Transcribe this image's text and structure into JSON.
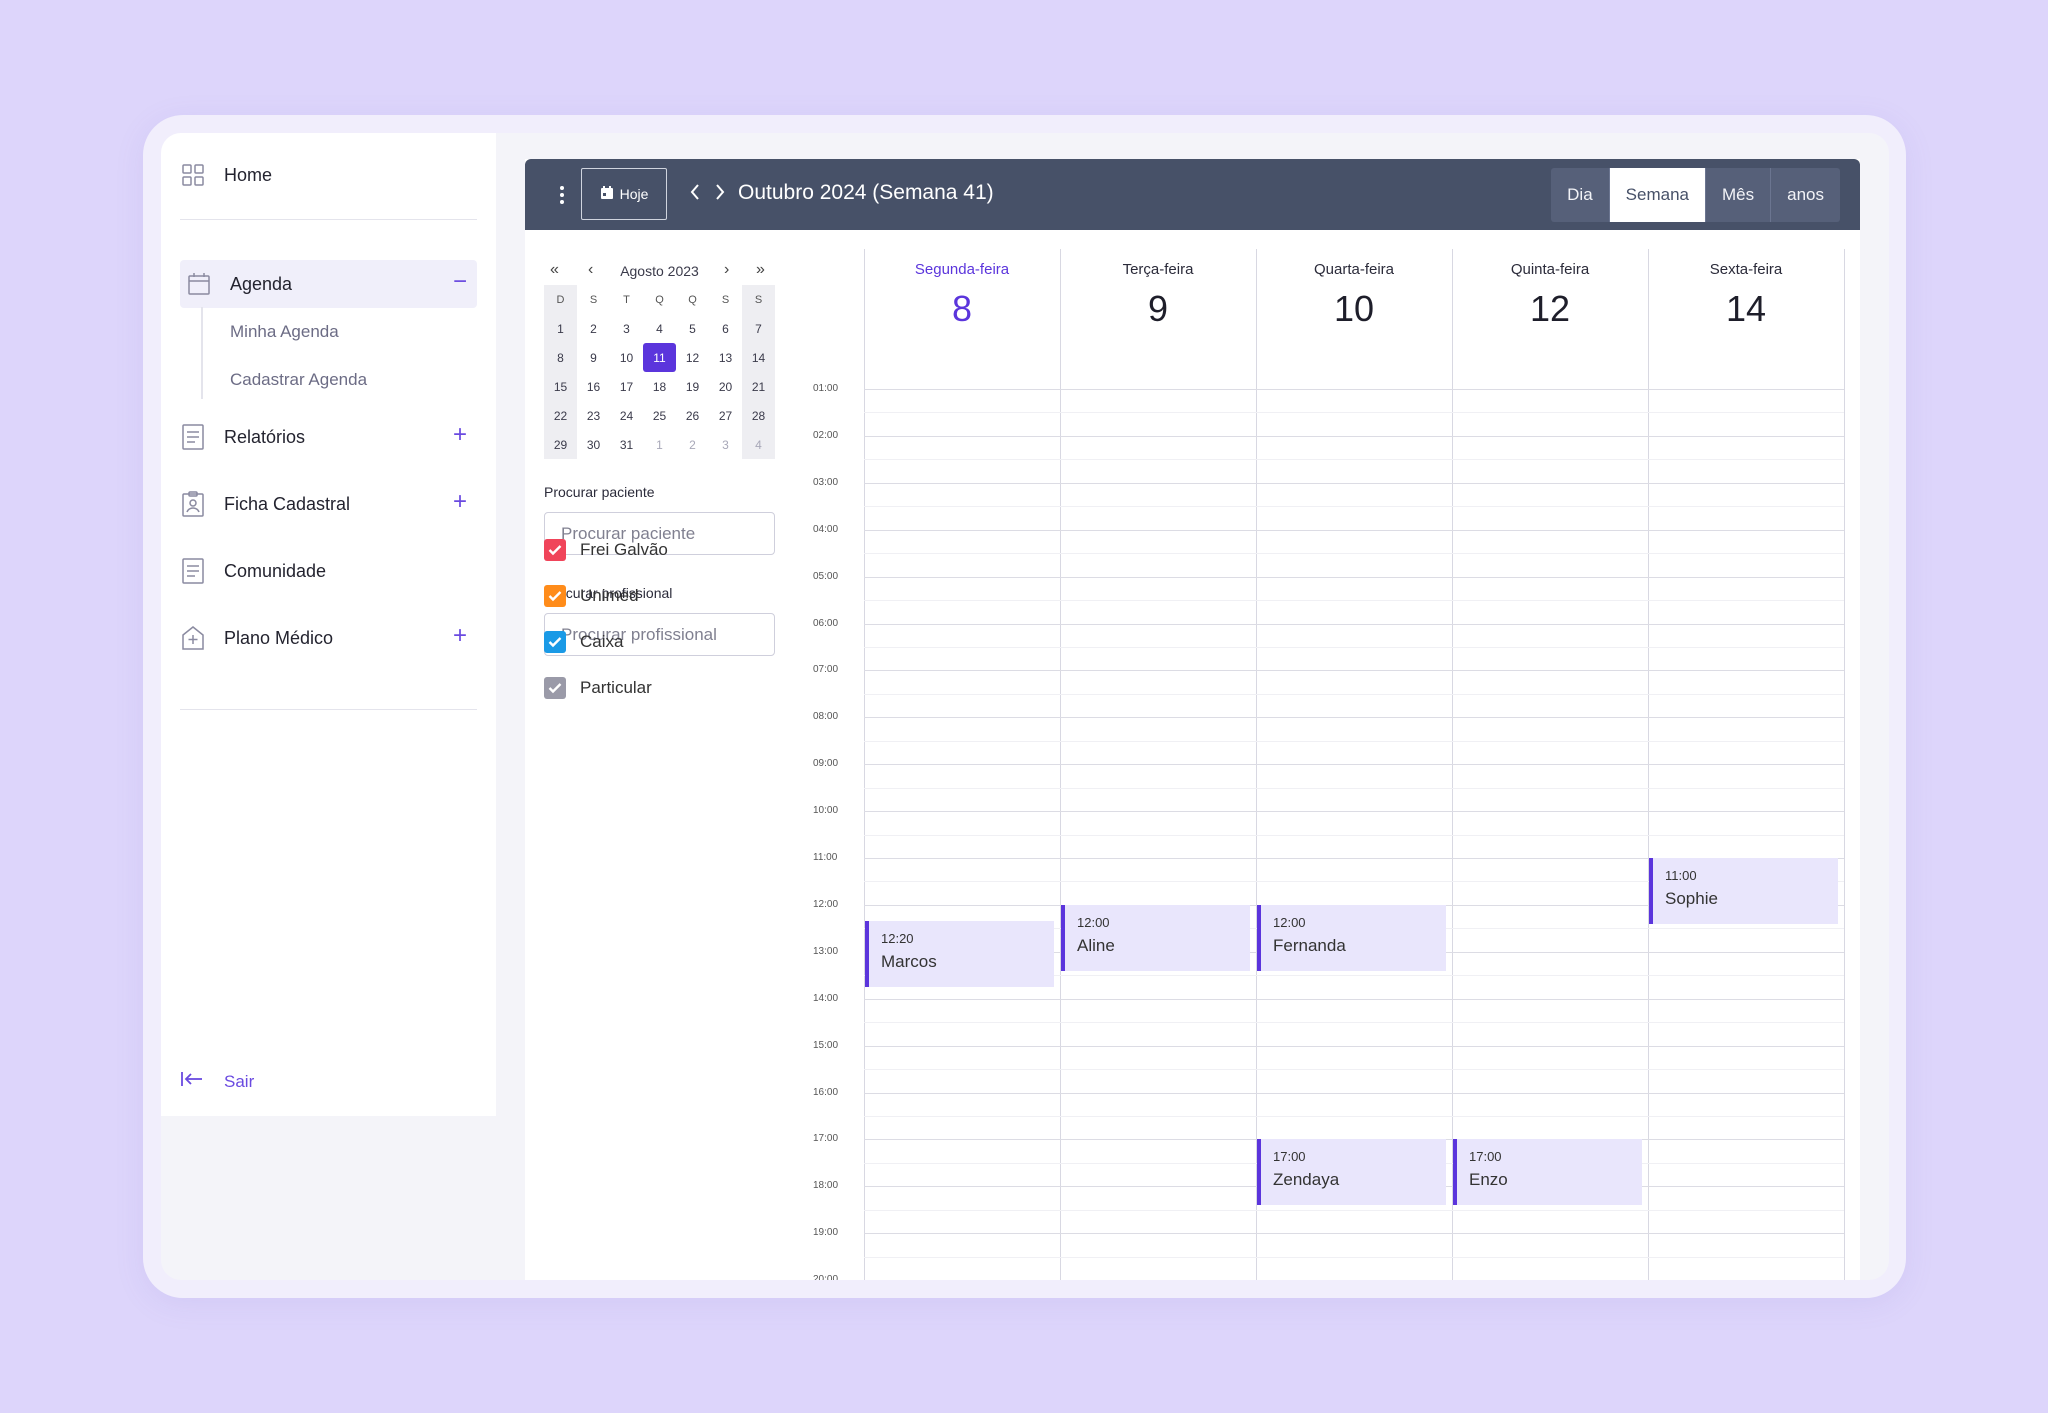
{
  "sidebar": {
    "home": "Home",
    "agenda": "Agenda",
    "agenda_toggle": "−",
    "sub_items": [
      "Minha Agenda",
      "Cadastrar Agenda"
    ],
    "relatorios": "Relatórios",
    "ficha": "Ficha Cadastral",
    "comunidade": "Comunidade",
    "plano": "Plano Médico",
    "plus": "+",
    "logout": "Sair"
  },
  "toolbar": {
    "today": "Hoje",
    "title": "Outubro 2024 (Semana 41)",
    "views": [
      "Dia",
      "Semana",
      "Mês",
      "anos"
    ],
    "selected_view": "Semana"
  },
  "mini_calendar": {
    "title": "Agosto 2023",
    "weekdays": [
      "D",
      "S",
      "T",
      "Q",
      "Q",
      "S",
      "S"
    ],
    "weeks": [
      [
        "1",
        "2",
        "3",
        "4",
        "5",
        "6",
        "7"
      ],
      [
        "8",
        "9",
        "10",
        "11",
        "12",
        "13",
        "14"
      ],
      [
        "15",
        "16",
        "17",
        "18",
        "19",
        "20",
        "21"
      ],
      [
        "22",
        "23",
        "24",
        "25",
        "26",
        "27",
        "28"
      ],
      [
        "29",
        "30",
        "31",
        "1",
        "2",
        "3",
        "4"
      ]
    ],
    "today": "11"
  },
  "filters": {
    "patient_label": "Procurar paciente",
    "patient_placeholder": "Procurar paciente",
    "professional_label": "Procurar profissional",
    "professional_placeholder": "Procurar profissional",
    "checkboxes": [
      {
        "label": "Frei Galvão",
        "color": "#f0445a",
        "checked": true
      },
      {
        "label": "Unimed",
        "color": "#ff8c1a",
        "checked": true
      },
      {
        "label": "Caixa",
        "color": "#1a9ae6",
        "checked": true
      },
      {
        "label": "Particular",
        "color": "#9a9aa8",
        "checked": true
      }
    ]
  },
  "week": {
    "days": [
      {
        "name": "Segunda-feira",
        "date": "8",
        "current": true
      },
      {
        "name": "Terça-feira",
        "date": "9"
      },
      {
        "name": "Quarta-feira",
        "date": "10"
      },
      {
        "name": "Quinta-feira",
        "date": "12"
      },
      {
        "name": "Sexta-feira",
        "date": "14"
      }
    ],
    "hours": [
      "01:00",
      "02:00",
      "03:00",
      "04:00",
      "05:00",
      "06:00",
      "07:00",
      "08:00",
      "09:00",
      "10:00",
      "11:00",
      "12:00",
      "13:00",
      "14:00",
      "15:00",
      "16:00",
      "17:00",
      "18:00",
      "19:00",
      "20:00"
    ],
    "events": [
      {
        "day": 0,
        "time": "12:20",
        "name": "Marcos"
      },
      {
        "day": 1,
        "time": "12:00",
        "name": "Aline"
      },
      {
        "day": 2,
        "time": "12:00",
        "name": "Fernanda"
      },
      {
        "day": 4,
        "time": "11:00",
        "name": "Sophie"
      },
      {
        "day": 2,
        "time": "17:00",
        "name": "Zendaya"
      },
      {
        "day": 3,
        "time": "17:00",
        "name": "Enzo"
      }
    ],
    "accent": "#5b35dc"
  }
}
